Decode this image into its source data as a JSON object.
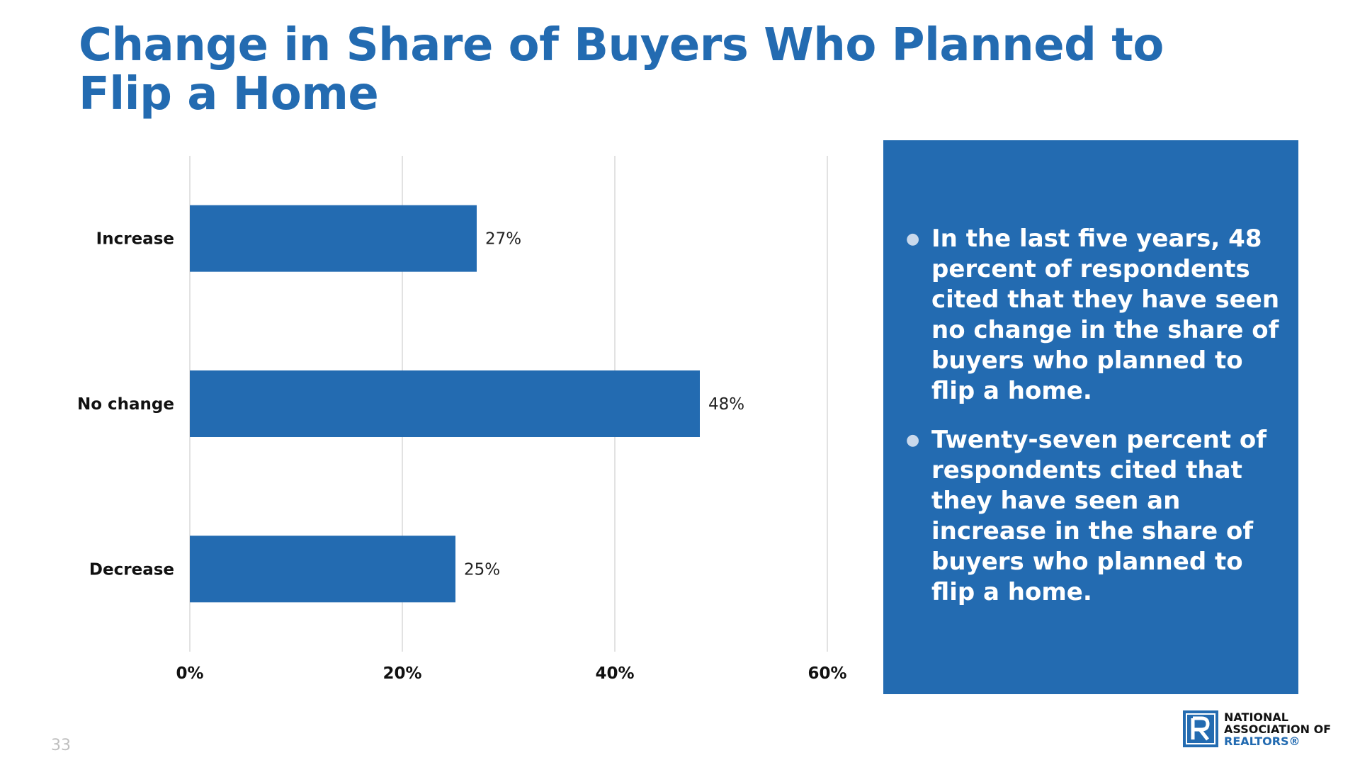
{
  "slide": {
    "title_line1": "Change in Share of Buyers Who Planned to",
    "title_line2": "Flip a Home",
    "page_number": "33"
  },
  "summary": {
    "bullets": [
      "In the last five years, 48 percent of respondents cited that they have seen no change in the share of buyers who planned to flip a home.",
      "Twenty-seven percent of respondents cited that they have seen an increase in the share of buyers who planned to flip a home."
    ]
  },
  "logo": {
    "line1": "NATIONAL",
    "line2": "ASSOCIATION OF",
    "line3": "REALTORS®",
    "mark_icon": "realtor-r-logo-icon"
  },
  "colors": {
    "brand_blue": "#236BB1",
    "gridline": "#d9d9d9"
  },
  "chart_data": {
    "type": "bar",
    "orientation": "horizontal",
    "categories": [
      "Increase",
      "No change",
      "Decrease"
    ],
    "values": [
      27,
      48,
      25
    ],
    "value_labels": [
      "27%",
      "48%",
      "25%"
    ],
    "xlim": [
      0,
      60
    ],
    "xticks": [
      0,
      20,
      40,
      60
    ],
    "xtick_labels": [
      "0%",
      "20%",
      "40%",
      "60%"
    ],
    "grid": true,
    "legend": "none",
    "title": "",
    "xlabel": "",
    "ylabel": ""
  }
}
